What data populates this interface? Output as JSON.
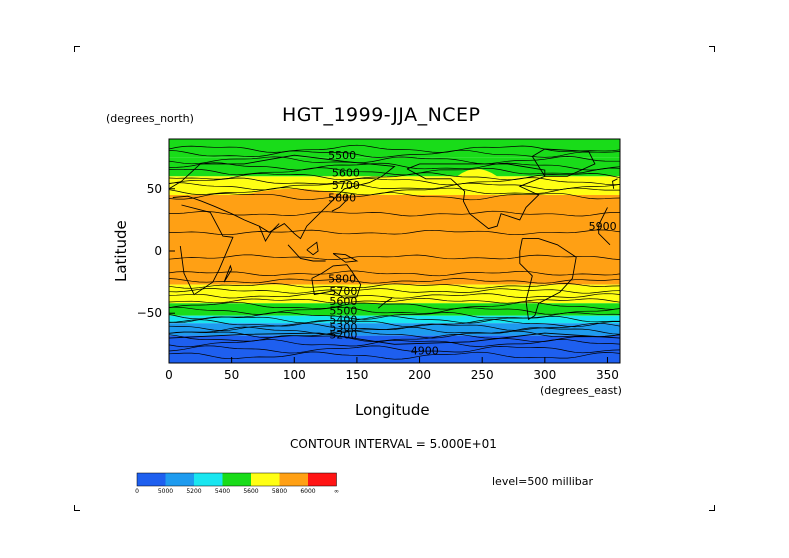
{
  "chart_data": {
    "type": "heatmap",
    "title": "HGT_1999-JJA_NCEP",
    "xlabel": "Longitude",
    "ylabel": "Latitude",
    "x_unit": "(degrees_east)",
    "y_unit": "(degrees_north)",
    "xlim": [
      0,
      360
    ],
    "ylim": [
      -90,
      90
    ],
    "x_ticks": [
      0,
      50,
      100,
      150,
      200,
      250,
      300,
      350
    ],
    "y_ticks": [
      50,
      0,
      -50
    ],
    "contour_interval": "CONTOUR INTERVAL = 5.000E+01",
    "level": "level=500 millibar",
    "contour_labels": [
      {
        "text": "5500",
        "lon": 127,
        "lat": 77
      },
      {
        "text": "5600",
        "lon": 130,
        "lat": 63
      },
      {
        "text": "5700",
        "lon": 130,
        "lat": 53
      },
      {
        "text": "5800",
        "lon": 127,
        "lat": 43
      },
      {
        "text": "5900",
        "lon": 335,
        "lat": 20
      },
      {
        "text": "5800",
        "lon": 127,
        "lat": -22
      },
      {
        "text": "5700",
        "lon": 128,
        "lat": -32
      },
      {
        "text": "5600",
        "lon": 128,
        "lat": -40
      },
      {
        "text": "5500",
        "lon": 128,
        "lat": -48
      },
      {
        "text": "5400",
        "lon": 128,
        "lat": -55
      },
      {
        "text": "5300",
        "lon": 128,
        "lat": -61
      },
      {
        "text": "5200",
        "lon": 128,
        "lat": -67
      },
      {
        "text": "4900",
        "lon": 193,
        "lat": -80
      }
    ],
    "colorbar": {
      "colors": [
        "#1e5fef",
        "#1e9bef",
        "#19e6f0",
        "#19dc19",
        "#ffff14",
        "#ffa014",
        "#ff1414"
      ],
      "labels": [
        "0",
        "5000",
        "5200",
        "5400",
        "5600",
        "5800",
        "6000",
        "∞"
      ]
    },
    "bands": [
      {
        "lat_top": 90,
        "lat_bottom": 75,
        "color": "#19dc19"
      },
      {
        "lat_top": 75,
        "lat_bottom": 60,
        "color": "#19dc19"
      },
      {
        "lat_top": 60,
        "lat_bottom": 45,
        "color": "#ffff14"
      },
      {
        "lat_top": 45,
        "lat_bottom": -27,
        "color": "#ffa014"
      },
      {
        "lat_top": -27,
        "lat_bottom": -42,
        "color": "#ffff14"
      },
      {
        "lat_top": -42,
        "lat_bottom": -52,
        "color": "#19dc19"
      },
      {
        "lat_top": -52,
        "lat_bottom": -58,
        "color": "#19e6f0"
      },
      {
        "lat_top": -58,
        "lat_bottom": -68,
        "color": "#1e9bef"
      },
      {
        "lat_top": -68,
        "lat_bottom": -90,
        "color": "#1e5fef"
      }
    ]
  }
}
